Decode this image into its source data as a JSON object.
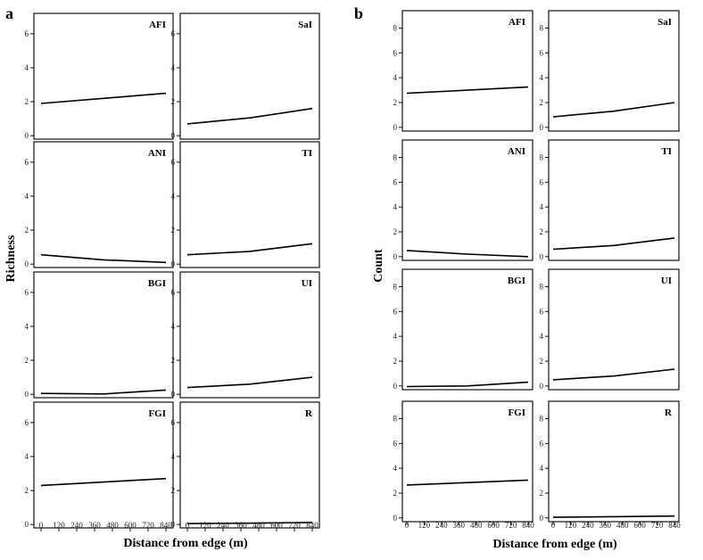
{
  "chart_data": [
    {
      "panel_label": "a",
      "ylabel": "Richness",
      "xlabel": "Distance from edge (m)",
      "type": "line",
      "x_ticks": [
        0,
        120,
        240,
        360,
        480,
        600,
        720,
        840
      ],
      "ylim": [
        -0.2,
        7.2
      ],
      "y_ticks": [
        0,
        2,
        4,
        6
      ],
      "subplots": [
        {
          "title": "AFI",
          "x": [
            0,
            420,
            840
          ],
          "y": [
            1.9,
            2.2,
            2.5
          ]
        },
        {
          "title": "SaI",
          "x": [
            0,
            420,
            840
          ],
          "y": [
            0.7,
            1.05,
            1.6
          ]
        },
        {
          "title": "ANI",
          "x": [
            0,
            420,
            840
          ],
          "y": [
            0.55,
            0.25,
            0.1
          ]
        },
        {
          "title": "TI",
          "x": [
            0,
            420,
            840
          ],
          "y": [
            0.55,
            0.75,
            1.2
          ]
        },
        {
          "title": "BGI",
          "x": [
            0,
            420,
            840
          ],
          "y": [
            0.05,
            0.02,
            0.25
          ]
        },
        {
          "title": "UI",
          "x": [
            0,
            420,
            840
          ],
          "y": [
            0.4,
            0.6,
            1.0
          ]
        },
        {
          "title": "FGI",
          "x": [
            0,
            420,
            840
          ],
          "y": [
            2.3,
            2.5,
            2.7
          ]
        },
        {
          "title": "R",
          "x": [
            0,
            420,
            840
          ],
          "y": [
            0.05,
            0.08,
            0.12
          ]
        }
      ]
    },
    {
      "panel_label": "b",
      "ylabel": "Count",
      "xlabel": "Distance from edge (m)",
      "type": "line",
      "x_ticks": [
        0,
        120,
        240,
        360,
        480,
        600,
        720,
        840
      ],
      "ylim": [
        -0.3,
        9.4
      ],
      "y_ticks": [
        0,
        2,
        4,
        6,
        8
      ],
      "subplots": [
        {
          "title": "AFI",
          "x": [
            0,
            420,
            840
          ],
          "y": [
            2.75,
            3.0,
            3.25
          ]
        },
        {
          "title": "SaI",
          "x": [
            0,
            420,
            840
          ],
          "y": [
            0.85,
            1.3,
            2.0
          ]
        },
        {
          "title": "ANI",
          "x": [
            0,
            420,
            840
          ],
          "y": [
            0.5,
            0.2,
            0.0
          ]
        },
        {
          "title": "TI",
          "x": [
            0,
            420,
            840
          ],
          "y": [
            0.6,
            0.9,
            1.5
          ]
        },
        {
          "title": "BGI",
          "x": [
            0,
            420,
            840
          ],
          "y": [
            -0.05,
            0.0,
            0.3
          ]
        },
        {
          "title": "UI",
          "x": [
            0,
            420,
            840
          ],
          "y": [
            0.5,
            0.8,
            1.35
          ]
        },
        {
          "title": "FGI",
          "x": [
            0,
            420,
            840
          ],
          "y": [
            2.65,
            2.85,
            3.05
          ]
        },
        {
          "title": "R",
          "x": [
            0,
            420,
            840
          ],
          "y": [
            0.05,
            0.1,
            0.15
          ]
        }
      ]
    }
  ]
}
